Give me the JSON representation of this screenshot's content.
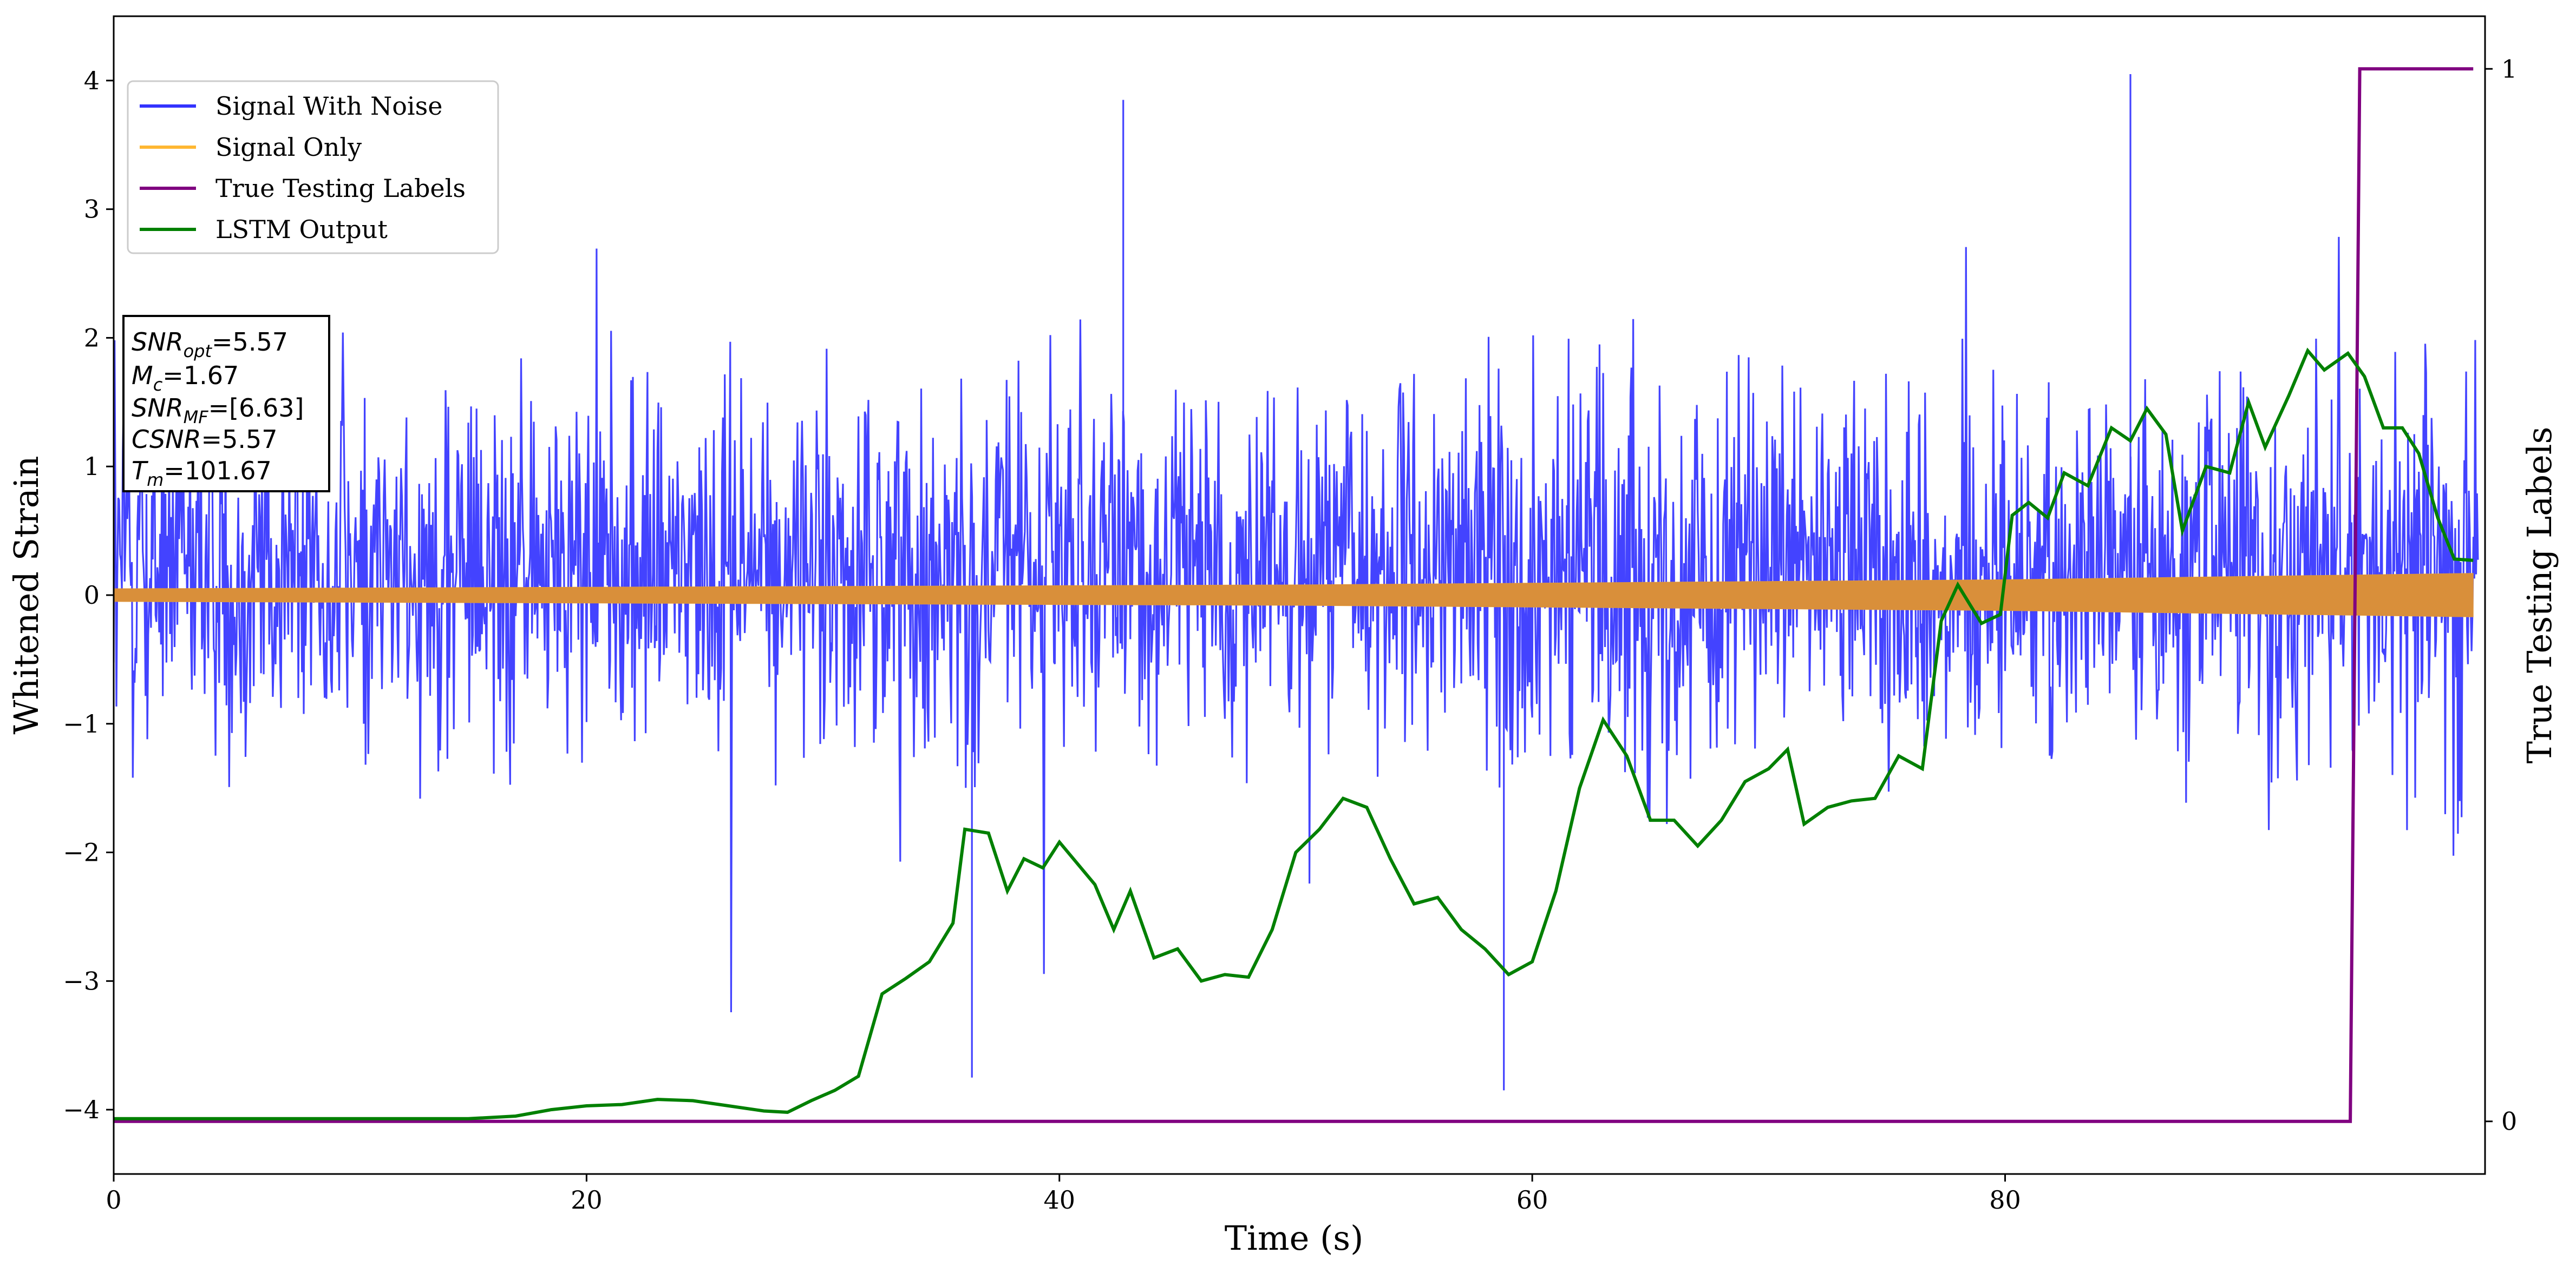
{
  "chart_data": {
    "type": "line",
    "xlabel": "Time (s)",
    "ylabel": "Whitened Strain",
    "ylabel_right": "True Testing Labels",
    "xlim": [
      0,
      100.3
    ],
    "ylim": [
      -4.5,
      4.5
    ],
    "ylim_right": [
      -0.05,
      1.05
    ],
    "xticks": [
      0,
      20,
      40,
      60,
      80
    ],
    "yticks": [
      -4,
      -3,
      -2,
      -1,
      0,
      1,
      2,
      3,
      4
    ],
    "yticks_right": [
      0,
      1
    ],
    "grid": false,
    "legend_position": "upper-left",
    "series": [
      {
        "name": "Signal With Noise",
        "axis": "left",
        "color": "#3333ff",
        "style": "dense noise band",
        "typical_range": [
          -1.0,
          1.5
        ],
        "peaks": [
          [
            42.7,
            3.85
          ],
          [
            85.3,
            4.05
          ],
          [
            58.8,
            -3.85
          ],
          [
            36.3,
            -3.75
          ]
        ]
      },
      {
        "name": "Signal Only",
        "axis": "left",
        "color": "#ffa500",
        "style": "chirp envelope",
        "envelope": [
          [
            0,
            0.05
          ],
          [
            50,
            0.08
          ],
          [
            80,
            0.12
          ],
          [
            100,
            0.17
          ]
        ]
      },
      {
        "name": "True Testing Labels",
        "axis": "right",
        "color": "#800080",
        "points": [
          [
            0,
            0
          ],
          [
            94.6,
            0
          ],
          [
            95.0,
            1
          ],
          [
            99.8,
            1
          ]
        ]
      },
      {
        "name": "LSTM Output",
        "axis": "left",
        "color": "#008000",
        "points": [
          [
            0,
            -4.07
          ],
          [
            15,
            -4.07
          ],
          [
            17,
            -4.05
          ],
          [
            18.5,
            -4.0
          ],
          [
            20,
            -3.97
          ],
          [
            21.5,
            -3.96
          ],
          [
            23,
            -3.92
          ],
          [
            24.5,
            -3.93
          ],
          [
            26,
            -3.97
          ],
          [
            27.5,
            -4.01
          ],
          [
            28.5,
            -4.02
          ],
          [
            29.5,
            -3.93
          ],
          [
            30.5,
            -3.85
          ],
          [
            31.5,
            -3.74
          ],
          [
            32.5,
            -3.1
          ],
          [
            33.5,
            -2.98
          ],
          [
            34.5,
            -2.85
          ],
          [
            35.5,
            -2.55
          ],
          [
            36,
            -1.82
          ],
          [
            37,
            -1.85
          ],
          [
            37.8,
            -2.3
          ],
          [
            38.5,
            -2.05
          ],
          [
            39.3,
            -2.12
          ],
          [
            40,
            -1.92
          ],
          [
            41.5,
            -2.25
          ],
          [
            42.3,
            -2.6
          ],
          [
            43,
            -2.3
          ],
          [
            44,
            -2.82
          ],
          [
            45,
            -2.75
          ],
          [
            46,
            -3.0
          ],
          [
            47,
            -2.95
          ],
          [
            48,
            -2.97
          ],
          [
            49,
            -2.6
          ],
          [
            50,
            -2.0
          ],
          [
            51,
            -1.82
          ],
          [
            52,
            -1.58
          ],
          [
            53,
            -1.65
          ],
          [
            54,
            -2.05
          ],
          [
            55,
            -2.4
          ],
          [
            56,
            -2.35
          ],
          [
            57,
            -2.6
          ],
          [
            58,
            -2.75
          ],
          [
            59,
            -2.95
          ],
          [
            60,
            -2.85
          ],
          [
            61,
            -2.3
          ],
          [
            62,
            -1.5
          ],
          [
            63,
            -0.97
          ],
          [
            64,
            -1.25
          ],
          [
            65,
            -1.75
          ],
          [
            66,
            -1.75
          ],
          [
            67,
            -1.95
          ],
          [
            68,
            -1.75
          ],
          [
            69,
            -1.45
          ],
          [
            70,
            -1.35
          ],
          [
            70.8,
            -1.2
          ],
          [
            71.5,
            -1.78
          ],
          [
            72.5,
            -1.65
          ],
          [
            73.5,
            -1.6
          ],
          [
            74.5,
            -1.58
          ],
          [
            75.5,
            -1.25
          ],
          [
            76.5,
            -1.35
          ],
          [
            77.3,
            -0.2
          ],
          [
            78,
            0.08
          ],
          [
            79,
            -0.22
          ],
          [
            79.8,
            -0.15
          ],
          [
            80.3,
            0.62
          ],
          [
            81,
            0.72
          ],
          [
            81.8,
            0.6
          ],
          [
            82.5,
            0.95
          ],
          [
            83.5,
            0.85
          ],
          [
            84.5,
            1.3
          ],
          [
            85.3,
            1.2
          ],
          [
            86,
            1.45
          ],
          [
            86.8,
            1.25
          ],
          [
            87.5,
            0.5
          ],
          [
            88.5,
            1.0
          ],
          [
            89.5,
            0.95
          ],
          [
            90.3,
            1.5
          ],
          [
            91,
            1.15
          ],
          [
            92,
            1.55
          ],
          [
            92.8,
            1.9
          ],
          [
            93.5,
            1.75
          ],
          [
            94.5,
            1.88
          ],
          [
            95.2,
            1.7
          ],
          [
            96,
            1.3
          ],
          [
            96.8,
            1.3
          ],
          [
            97.5,
            1.1
          ],
          [
            98.3,
            0.6
          ],
          [
            99,
            0.28
          ],
          [
            99.8,
            0.27
          ]
        ]
      }
    ]
  },
  "info_box": {
    "snr_opt_sub": "opt",
    "snr_opt_value": "=5.57",
    "mc_sub": "c",
    "mc_value": "=1.67",
    "snr_mf_sub": "MF",
    "snr_mf_value": "=[6.63]",
    "csnr": "CSNR",
    "csnr_value": "=5.57",
    "tm_sub": "m",
    "tm_value": "=101.67"
  }
}
